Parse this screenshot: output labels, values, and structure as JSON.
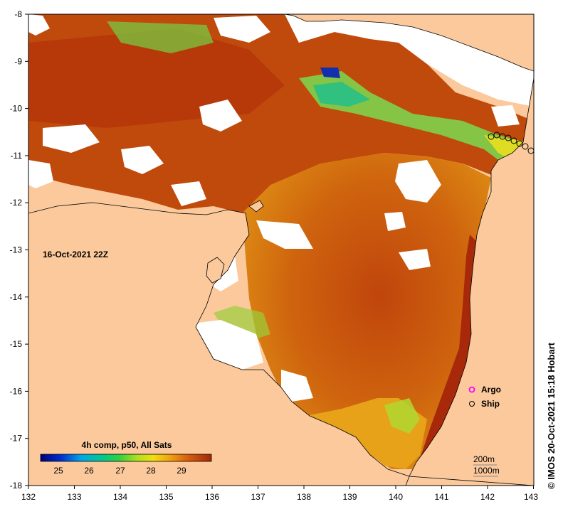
{
  "map": {
    "date_label": "16-Oct-2021 22Z",
    "credit": "© IMOS 20-Oct-2021 15:18 Hobart",
    "x_ticks": [
      "132",
      "133",
      "134",
      "135",
      "136",
      "137",
      "138",
      "139",
      "140",
      "141",
      "142",
      "143"
    ],
    "y_ticks": [
      "-8",
      "-9",
      "-10",
      "-11",
      "-12",
      "-13",
      "-14",
      "-15",
      "-16",
      "-17",
      "-18"
    ],
    "legend": {
      "title": "4h comp, p50, All Sats",
      "ticks": [
        "25",
        "26",
        "27",
        "28",
        "29"
      ],
      "argo": "Argo",
      "ship": "Ship",
      "depth_200": "200m",
      "depth_1000": "1000m"
    },
    "colors": {
      "land": "#fbc99b",
      "cloud": "#ffffff",
      "sst_warm": "#b5360b",
      "sst_mid": "#d2650b",
      "sst_cool": "#e8a21a",
      "sst_green": "#8fd63a",
      "argo": "#ff00ff"
    }
  }
}
